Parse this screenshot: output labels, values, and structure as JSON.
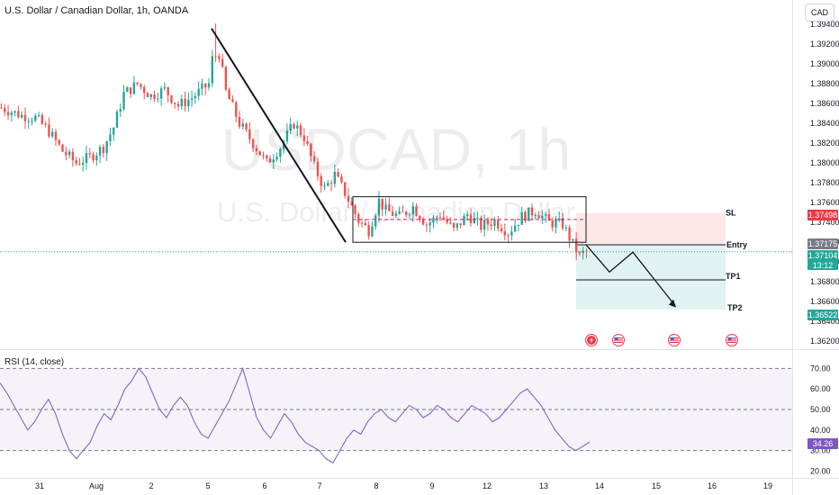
{
  "header": {
    "title": "U.S. Dollar / Canadian Dollar, 1h, OANDA",
    "currency_button": "CAD"
  },
  "watermark": {
    "symbol": "USDCAD, 1h",
    "name": "U.S. Dollar / Canadian Dollar"
  },
  "rsi": {
    "title": "RSI (14, close)",
    "value_label": "34.26",
    "color": "#7e57c2"
  },
  "annotations": {
    "sl": "SL",
    "entry": "Entry",
    "tp1": "TP1",
    "tp2": "TP2"
  },
  "price_tags": {
    "sl": "1.37498",
    "entry": "1.37175",
    "current": "1.37104",
    "countdown": "13:12",
    "tp2": "1.36522"
  },
  "events": [
    {
      "icon": "lightning-icon",
      "type": "lightning"
    },
    {
      "icon": "us-flag-icon",
      "type": "flag"
    },
    {
      "icon": "us-flag-icon",
      "type": "flag"
    },
    {
      "icon": "us-flag-stack-icon",
      "type": "flag"
    }
  ],
  "colors": {
    "up": "#26a69a",
    "down": "#ef5350",
    "trendline": "#131722",
    "accent": "#2962ff"
  },
  "chart_data": [
    {
      "type": "candlestick",
      "title": "U.S. Dollar / Canadian Dollar, 1h, OANDA",
      "x_tick_labels": [
        "31",
        "Aug",
        "2",
        "5",
        "6",
        "7",
        "8",
        "9",
        "12",
        "13",
        "14",
        "15",
        "16",
        "19"
      ],
      "y_tick_labels": [
        "1.39400",
        "1.39200",
        "1.39000",
        "1.38800",
        "1.38600",
        "1.38400",
        "1.38200",
        "1.38000",
        "1.37800",
        "1.37600",
        "1.37400",
        "1.37200",
        "1.37000",
        "1.36800",
        "1.36600",
        "1.36400",
        "1.36200"
      ],
      "ylim": [
        1.3612,
        1.3952
      ],
      "price_waypoints": [
        [
          0,
          1.3856
        ],
        [
          6,
          1.3848
        ],
        [
          10,
          1.3846
        ],
        [
          14,
          1.3832
        ],
        [
          18,
          1.3812
        ],
        [
          22,
          1.38
        ],
        [
          26,
          1.3806
        ],
        [
          30,
          1.3816
        ],
        [
          33,
          1.3836
        ],
        [
          36,
          1.387
        ],
        [
          40,
          1.388
        ],
        [
          44,
          1.3868
        ],
        [
          48,
          1.3874
        ],
        [
          52,
          1.3858
        ],
        [
          56,
          1.3866
        ],
        [
          61,
          1.388
        ],
        [
          63,
          1.393
        ],
        [
          66,
          1.3872
        ],
        [
          70,
          1.384
        ],
        [
          74,
          1.382
        ],
        [
          78,
          1.38
        ],
        [
          82,
          1.3816
        ],
        [
          86,
          1.384
        ],
        [
          89,
          1.3826
        ],
        [
          92,
          1.3796
        ],
        [
          95,
          1.3774
        ],
        [
          98,
          1.3788
        ],
        [
          101,
          1.377
        ],
        [
          105,
          1.3742
        ],
        [
          108,
          1.3732
        ],
        [
          111,
          1.3762
        ],
        [
          113,
          1.3752
        ],
        [
          117,
          1.3746
        ],
        [
          121,
          1.3756
        ],
        [
          125,
          1.3738
        ],
        [
          129,
          1.3748
        ],
        [
          133,
          1.3732
        ],
        [
          137,
          1.3748
        ],
        [
          141,
          1.3736
        ],
        [
          145,
          1.3742
        ],
        [
          149,
          1.373
        ],
        [
          153,
          1.3746
        ],
        [
          157,
          1.3752
        ],
        [
          161,
          1.374
        ],
        [
          165,
          1.3738
        ],
        [
          168,
          1.3718
        ],
        [
          170,
          1.3706
        ],
        [
          172,
          1.3712
        ]
      ],
      "trendline": {
        "from": [
          1.3936
        ],
        "to": [
          1.372
        ]
      },
      "range_box": {
        "top": 1.3766,
        "bottom": 1.372
      },
      "trade": {
        "sl": 1.37498,
        "entry": 1.37175,
        "tp1": 1.3682,
        "tp2": 1.36522,
        "current": 1.37104
      },
      "projection": [
        1.37175,
        1.369,
        1.371,
        1.3656
      ],
      "grid": false
    },
    {
      "type": "line",
      "title": "RSI (14, close)",
      "y_tick_labels": [
        "70.00",
        "60.00",
        "50.00",
        "40.00",
        "30.00",
        "20.00"
      ],
      "ylim": [
        18,
        75
      ],
      "bands": [
        30,
        50,
        70
      ],
      "last_value": 34.26,
      "series": [
        {
          "name": "RSI (14, close)",
          "values": [
            63,
            58,
            52,
            46,
            40,
            44,
            50,
            55,
            48,
            38,
            30,
            26,
            30,
            34,
            42,
            48,
            45,
            52,
            60,
            64,
            70,
            66,
            58,
            50,
            46,
            52,
            56,
            52,
            44,
            38,
            36,
            42,
            48,
            54,
            62,
            70,
            58,
            46,
            40,
            36,
            42,
            48,
            44,
            38,
            34,
            32,
            30,
            26,
            24,
            30,
            36,
            40,
            38,
            44,
            48,
            50,
            46,
            44,
            48,
            52,
            50,
            46,
            48,
            52,
            50,
            46,
            44,
            48,
            52,
            50,
            48,
            44,
            46,
            50,
            54,
            58,
            60,
            56,
            52,
            46,
            40,
            36,
            32,
            30,
            32,
            34.26
          ]
        }
      ]
    }
  ]
}
